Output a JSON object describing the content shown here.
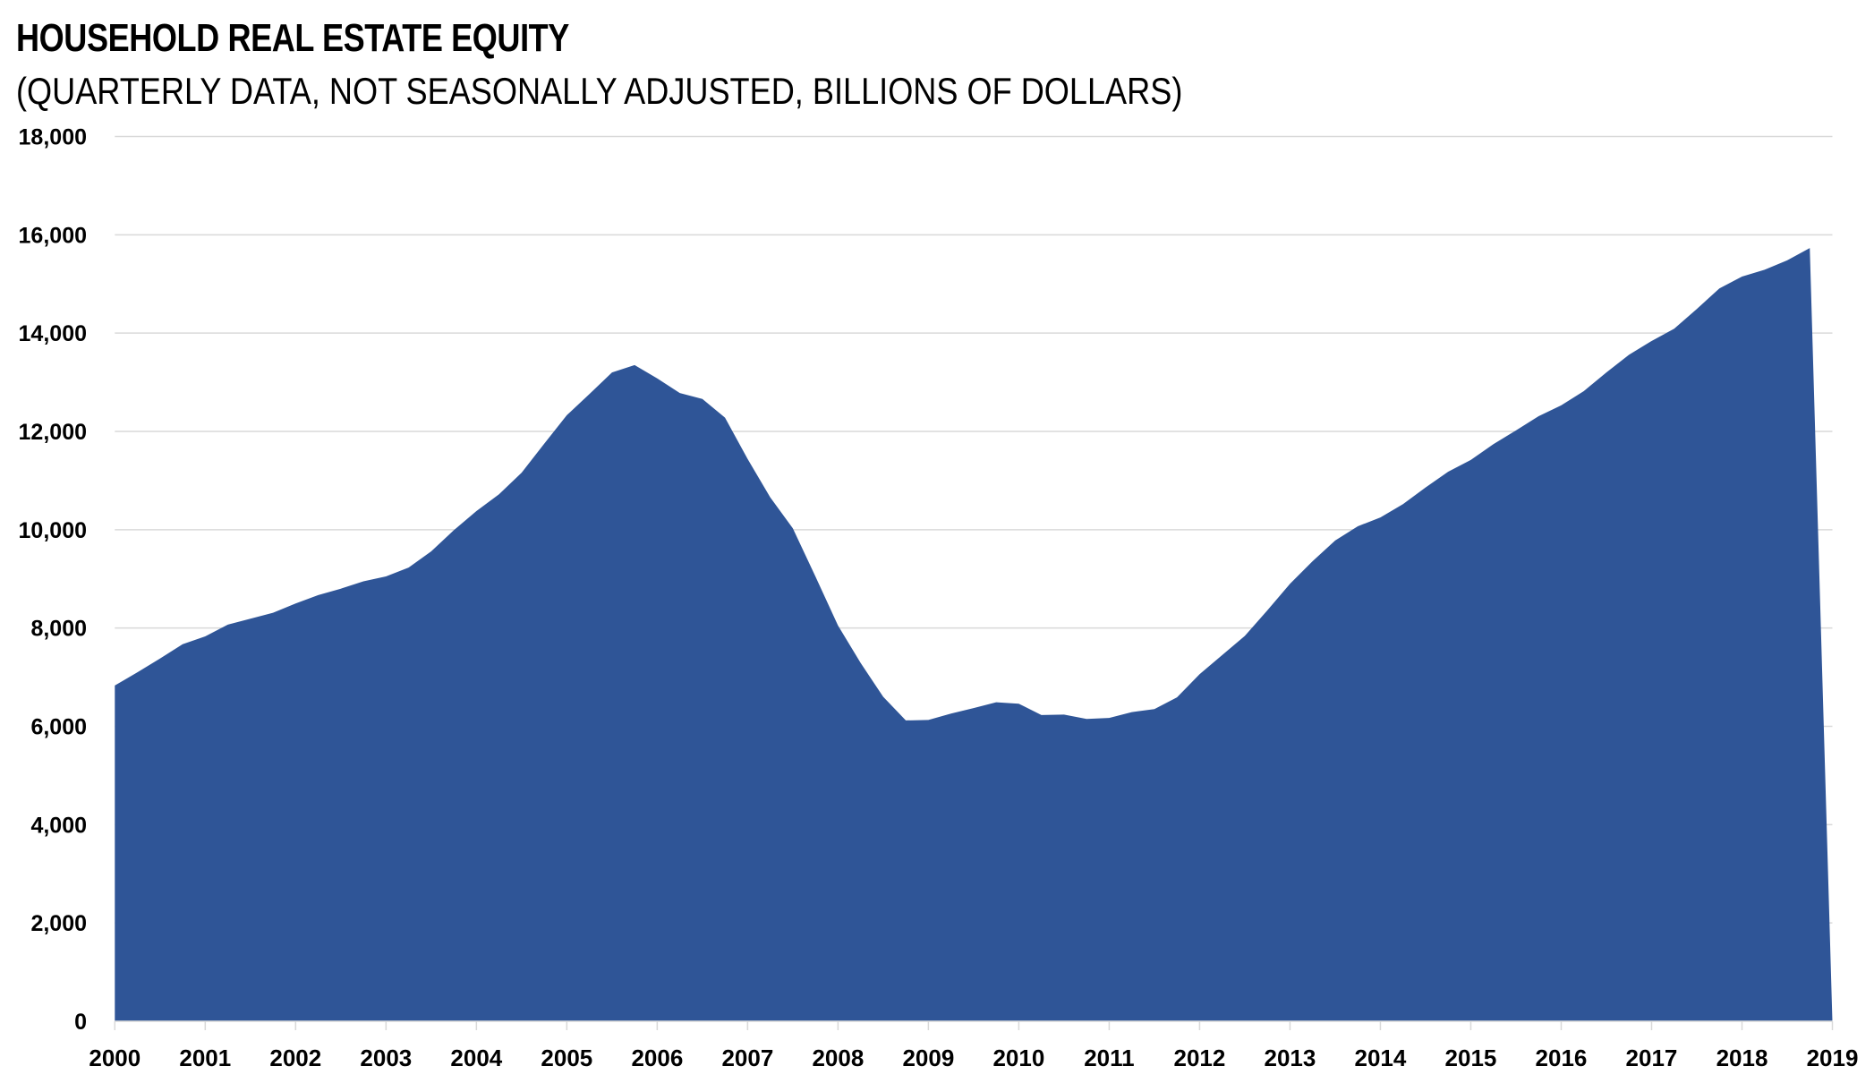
{
  "chart_data": {
    "type": "area",
    "title": "HOUSEHOLD REAL ESTATE EQUITY",
    "subtitle": "(QUARTERLY DATA, NOT SEASONALLY ADJUSTED, BILLIONS OF DOLLARS)",
    "xlabel": "",
    "ylabel": "",
    "x_start": 2000,
    "x_end": 2019,
    "frequency": "quarterly",
    "xticks": [
      "2000",
      "2001",
      "2002",
      "2003",
      "2004",
      "2005",
      "2006",
      "2007",
      "2008",
      "2009",
      "2010",
      "2011",
      "2012",
      "2013",
      "2014",
      "2015",
      "2016",
      "2017",
      "2018",
      "2019"
    ],
    "yticks": [
      "0",
      "2,000",
      "4,000",
      "6,000",
      "8,000",
      "10,000",
      "12,000",
      "14,000",
      "16,000",
      "18,000"
    ],
    "ylim": [
      0,
      18000
    ],
    "ytick_step": 2000,
    "grid": "horizontal",
    "legend": "none",
    "fill_color": "#2F5597",
    "grid_color": "#D9D9D9",
    "series": [
      {
        "name": "Household Real Estate Equity",
        "x": [
          "2000Q1",
          "2000Q2",
          "2000Q3",
          "2000Q4",
          "2001Q1",
          "2001Q2",
          "2001Q3",
          "2001Q4",
          "2002Q1",
          "2002Q2",
          "2002Q3",
          "2002Q4",
          "2003Q1",
          "2003Q2",
          "2003Q3",
          "2003Q4",
          "2004Q1",
          "2004Q2",
          "2004Q3",
          "2004Q4",
          "2005Q1",
          "2005Q2",
          "2005Q3",
          "2005Q4",
          "2006Q1",
          "2006Q2",
          "2006Q3",
          "2006Q4",
          "2007Q1",
          "2007Q2",
          "2007Q3",
          "2007Q4",
          "2008Q1",
          "2008Q2",
          "2008Q3",
          "2008Q4",
          "2009Q1",
          "2009Q2",
          "2009Q3",
          "2009Q4",
          "2010Q1",
          "2010Q2",
          "2010Q3",
          "2010Q4",
          "2011Q1",
          "2011Q2",
          "2011Q3",
          "2011Q4",
          "2012Q1",
          "2012Q2",
          "2012Q3",
          "2012Q4",
          "2013Q1",
          "2013Q2",
          "2013Q3",
          "2013Q4",
          "2014Q1",
          "2014Q2",
          "2014Q3",
          "2014Q4",
          "2015Q1",
          "2015Q2",
          "2015Q3",
          "2015Q4",
          "2016Q1",
          "2016Q2",
          "2016Q3",
          "2016Q4",
          "2017Q1",
          "2017Q2",
          "2017Q3",
          "2017Q4",
          "2018Q1",
          "2018Q2",
          "2018Q3",
          "2018Q4",
          "2019Q1"
        ],
        "values": [
          6830,
          7100,
          7380,
          7670,
          7830,
          8070,
          8190,
          8310,
          8500,
          8670,
          8800,
          8950,
          9050,
          9230,
          9560,
          9990,
          10380,
          10720,
          11160,
          11750,
          12330,
          12760,
          13200,
          13350,
          13080,
          12780,
          12660,
          12280,
          11440,
          10660,
          10030,
          9050,
          8050,
          7290,
          6600,
          6120,
          6130,
          6260,
          6370,
          6490,
          6460,
          6230,
          6240,
          6150,
          6170,
          6290,
          6350,
          6590,
          7060,
          7450,
          7840,
          8360,
          8900,
          9360,
          9780,
          10070,
          10250,
          10520,
          10860,
          11180,
          11420,
          11740,
          12020,
          12310,
          12530,
          12820,
          13200,
          13560,
          13840,
          14090,
          14490,
          14910,
          15150,
          15290,
          15480,
          15730,
          0
        ]
      }
    ]
  }
}
